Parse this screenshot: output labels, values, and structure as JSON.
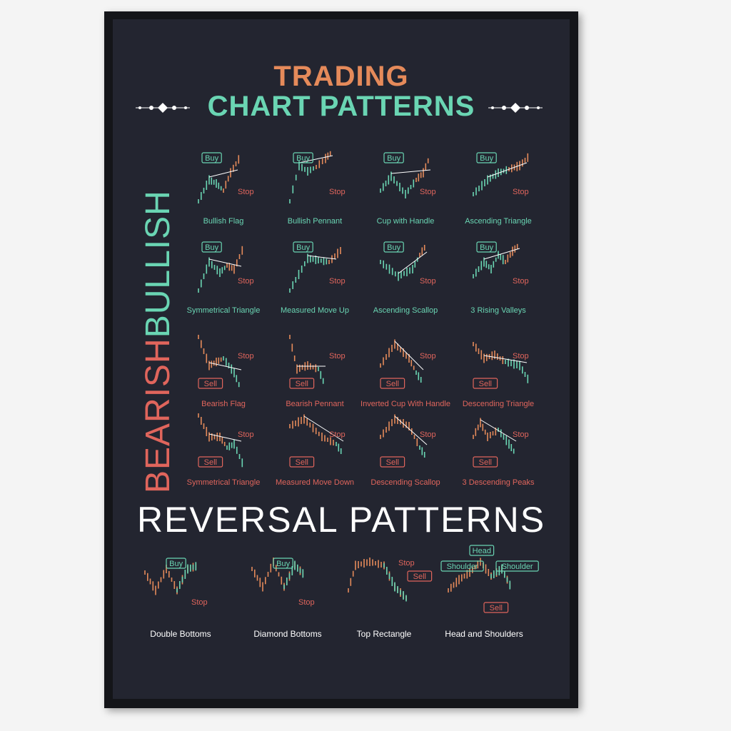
{
  "title": {
    "line1": "TRADING",
    "line2": "CHART PATTERNS"
  },
  "side_labels": {
    "bearish": "BEARISH",
    "bullish": "BULLISH"
  },
  "reversal_heading": "REVERSAL PATTERNS",
  "tags": {
    "buy": "Buy",
    "sell": "Sell",
    "stop": "Stop",
    "head": "Head",
    "shoulder": "Shoulder"
  },
  "colors": {
    "bullish": "#6ad5b3",
    "bearish": "#e0655c",
    "orange": "#e58a5a",
    "background": "#232530"
  },
  "bullish_patterns": [
    "Bullish Flag",
    "Bullish Pennant",
    "Cup with Handle",
    "Ascending Triangle",
    "Symmetrical Triangle",
    "Measured Move Up",
    "Ascending Scallop",
    "3 Rising Valleys"
  ],
  "bearish_patterns": [
    "Bearish Flag",
    "Bearish Pennant",
    "Inverted Cup With Handle",
    "Descending Triangle",
    "Symmetrical Triangle",
    "Measured Move Down",
    "Descending Scallop",
    "3 Descending Peaks"
  ],
  "reversal_patterns": [
    "Double Bottoms",
    "Diamond Bottoms",
    "Top Rectangle",
    "Head and Shoulders"
  ]
}
